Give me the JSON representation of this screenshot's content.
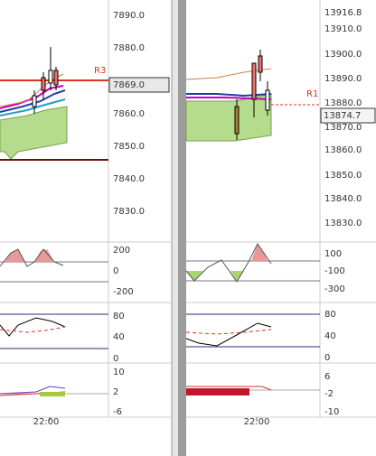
{
  "left": {
    "price_axis": [
      "7890.0",
      "7880.0",
      "7860.0",
      "7850.0",
      "7840.0",
      "7830.0"
    ],
    "price_marker": "7869.0",
    "level_label": "R3",
    "osc1_axis": [
      "200",
      "0",
      "-200"
    ],
    "osc2_axis": [
      "80",
      "40",
      "0"
    ],
    "osc3_axis": [
      "10",
      "2",
      "-6"
    ],
    "time_label": "22:00"
  },
  "right": {
    "price_axis": [
      "13916.8",
      "13910.0",
      "13900.0",
      "13890.0",
      "13880.0",
      "13870.0",
      "13860.0",
      "13850.0",
      "13840.0",
      "13830.0"
    ],
    "price_marker": "13874.7",
    "level_label": "R1",
    "osc1_axis": [
      "100",
      "-100",
      "-300"
    ],
    "osc2_axis": [
      "80",
      "40",
      "0"
    ],
    "osc3_axis": [
      "6",
      "-2",
      "-10"
    ],
    "time_label": "22:00"
  }
}
